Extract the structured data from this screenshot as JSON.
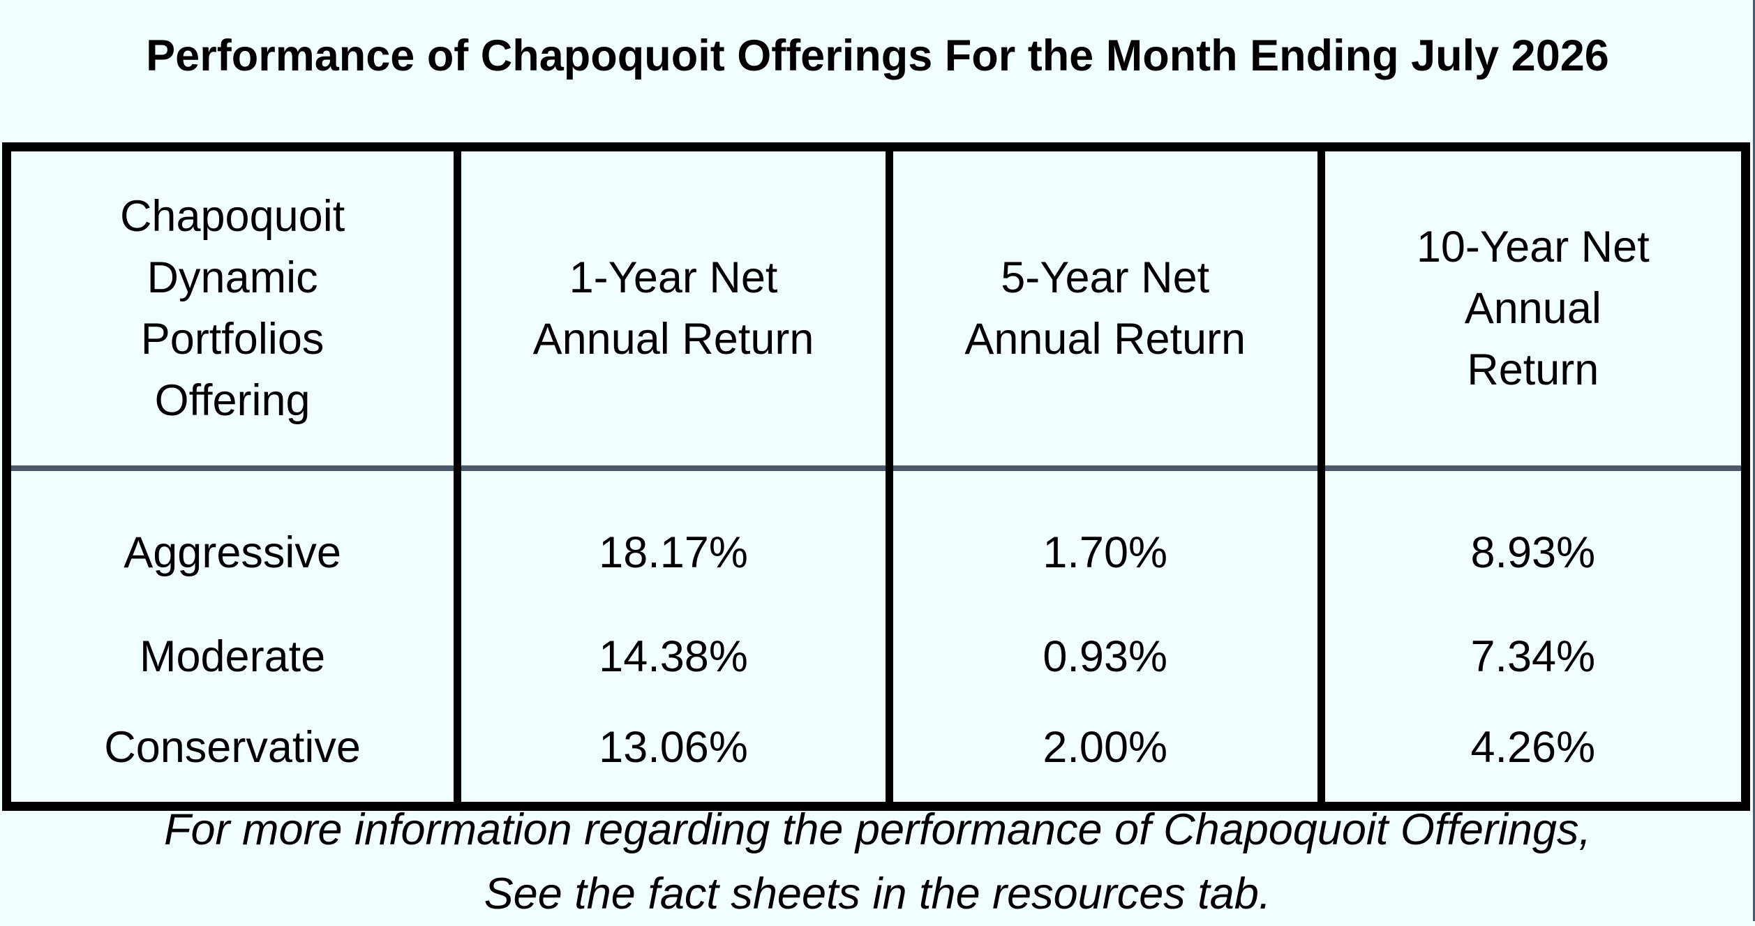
{
  "title": "Performance of Chapoquoit Offerings For the Month Ending July 2026",
  "table": {
    "headers": [
      "Chapoquoit Dynamic Portfolios Offering",
      "1-Year Net Annual Return",
      "5-Year Net Annual Return",
      "10-Year Net Annual Return"
    ],
    "rows": [
      [
        "Aggressive",
        "18.17%",
        "1.70%",
        "8.93%"
      ],
      [
        "Moderate",
        "14.38%",
        "0.93%",
        "7.34%"
      ],
      [
        "Conservative",
        "13.06%",
        "2.00%",
        "4.26%"
      ]
    ]
  },
  "footnote": {
    "line1": "For more information regarding the performance of Chapoquoit Offerings,",
    "line2": "See the fact sheets in the resources tab."
  },
  "colors": {
    "background": "#f0fefe",
    "border": "#000000",
    "header_divider": "#4b5a6a"
  }
}
